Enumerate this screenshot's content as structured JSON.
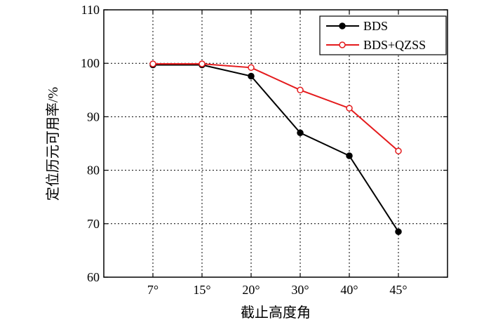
{
  "chart_data": {
    "type": "line",
    "title": "",
    "xlabel": "截止高度角",
    "ylabel": "定位历元可用率/%",
    "categories": [
      "7°",
      "15°",
      "20°",
      "30°",
      "40°",
      "45°"
    ],
    "ylim": [
      60,
      110
    ],
    "yticks": [
      "60",
      "70",
      "80",
      "90",
      "100",
      "110"
    ],
    "grid": true,
    "legend_position": "top-right",
    "series": [
      {
        "name": "BDS",
        "values": [
          99.7,
          99.7,
          97.6,
          87.0,
          82.7,
          68.5
        ],
        "color": "#000000",
        "marker": "filled-circle"
      },
      {
        "name": "BDS+QZSS",
        "values": [
          99.9,
          99.9,
          99.2,
          95.0,
          91.6,
          83.6
        ],
        "color": "#e41a1c",
        "marker": "open-circle"
      }
    ]
  }
}
